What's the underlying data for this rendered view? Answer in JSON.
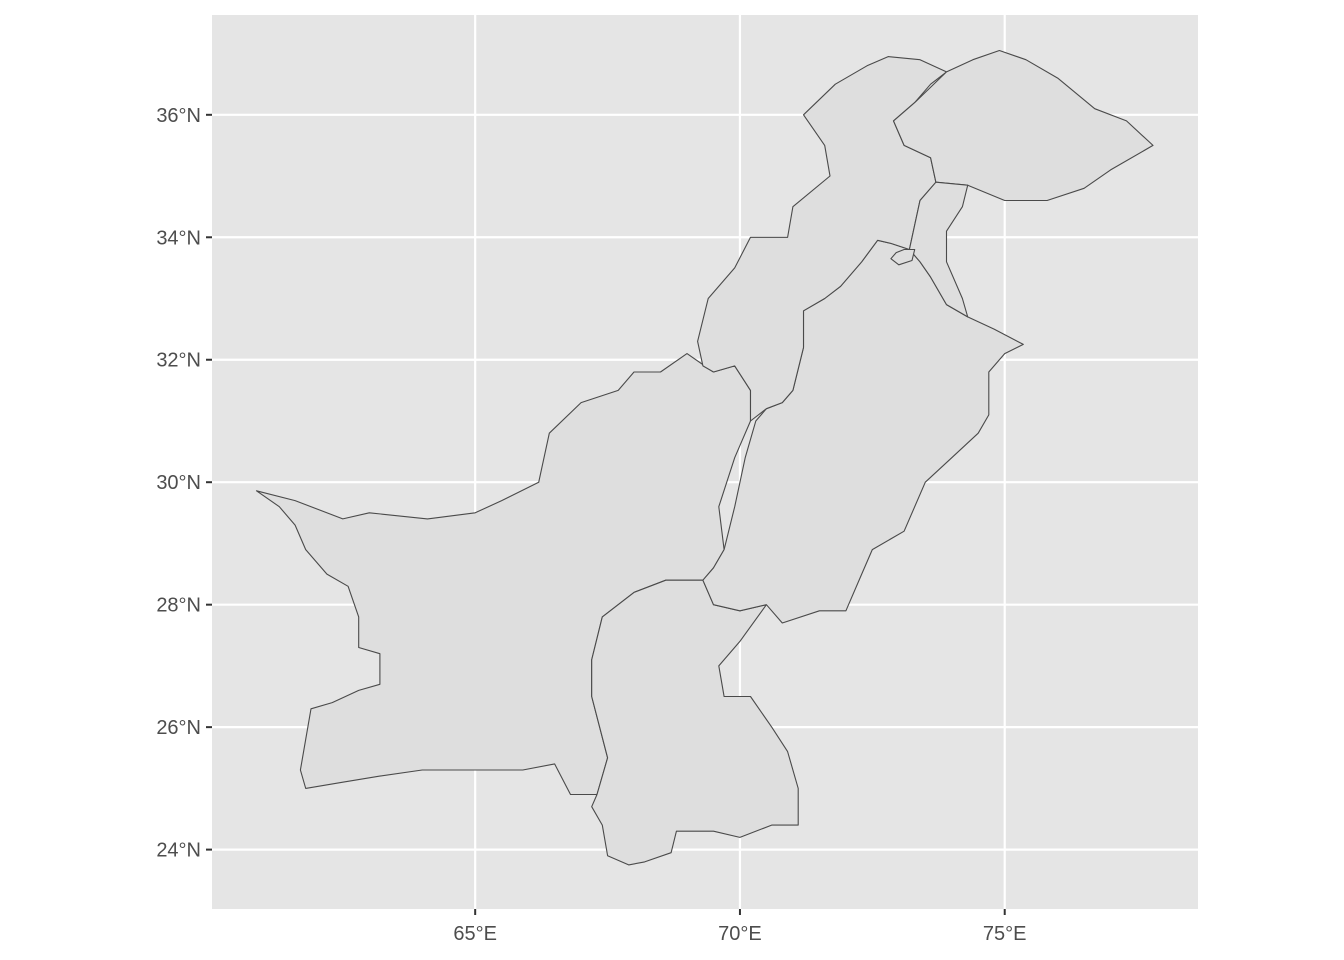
{
  "axes": {
    "x_ticks": [
      {
        "value": 65,
        "label": "65°E"
      },
      {
        "value": 70,
        "label": "70°E"
      },
      {
        "value": 75,
        "label": "75°E"
      }
    ],
    "y_ticks": [
      {
        "value": 24,
        "label": "24°N"
      },
      {
        "value": 26,
        "label": "26°N"
      },
      {
        "value": 28,
        "label": "28°N"
      },
      {
        "value": 30,
        "label": "30°N"
      },
      {
        "value": 32,
        "label": "32°N"
      },
      {
        "value": 34,
        "label": "34°N"
      },
      {
        "value": 36,
        "label": "36°N"
      }
    ],
    "x_range": [
      60.03,
      78.65
    ],
    "y_range": [
      23.03,
      37.63
    ]
  },
  "colors": {
    "panel_background": "#e5e5e5",
    "grid": "#ffffff",
    "region_fill": "#dedede",
    "region_border": "#4a4a4a",
    "tick_label": "#4d4d4d"
  },
  "regions": [
    {
      "id": "balochistan",
      "coords": [
        [
          60.87,
          29.86
        ],
        [
          61.3,
          29.6
        ],
        [
          61.6,
          29.3
        ],
        [
          61.8,
          28.9
        ],
        [
          62.2,
          28.5
        ],
        [
          62.6,
          28.3
        ],
        [
          62.8,
          27.8
        ],
        [
          62.8,
          27.3
        ],
        [
          63.2,
          27.2
        ],
        [
          63.2,
          26.7
        ],
        [
          62.8,
          26.6
        ],
        [
          62.3,
          26.4
        ],
        [
          61.9,
          26.3
        ],
        [
          61.8,
          25.8
        ],
        [
          61.7,
          25.3
        ],
        [
          61.8,
          25.0
        ],
        [
          62.5,
          25.1
        ],
        [
          63.2,
          25.2
        ],
        [
          64.0,
          25.3
        ],
        [
          65.0,
          25.3
        ],
        [
          65.9,
          25.3
        ],
        [
          66.5,
          25.4
        ],
        [
          66.8,
          24.9
        ],
        [
          67.3,
          24.9
        ],
        [
          67.5,
          25.5
        ],
        [
          67.2,
          26.5
        ],
        [
          67.2,
          27.1
        ],
        [
          67.4,
          27.8
        ],
        [
          68.0,
          28.2
        ],
        [
          68.6,
          28.4
        ],
        [
          69.3,
          28.4
        ],
        [
          69.5,
          28.6
        ],
        [
          69.7,
          28.9
        ],
        [
          69.6,
          29.6
        ],
        [
          69.9,
          30.4
        ],
        [
          70.2,
          31.0
        ],
        [
          70.2,
          31.5
        ],
        [
          69.9,
          31.9
        ],
        [
          69.5,
          31.8
        ],
        [
          69.0,
          32.1
        ],
        [
          68.5,
          31.8
        ],
        [
          68.0,
          31.8
        ],
        [
          67.7,
          31.5
        ],
        [
          67.0,
          31.3
        ],
        [
          66.4,
          30.8
        ],
        [
          66.2,
          30.0
        ],
        [
          65.5,
          29.7
        ],
        [
          65.0,
          29.5
        ],
        [
          64.1,
          29.4
        ],
        [
          63.0,
          29.5
        ],
        [
          62.5,
          29.4
        ],
        [
          61.6,
          29.7
        ]
      ]
    },
    {
      "id": "sindh",
      "coords": [
        [
          67.3,
          24.9
        ],
        [
          67.5,
          25.5
        ],
        [
          67.2,
          26.5
        ],
        [
          67.2,
          27.1
        ],
        [
          67.4,
          27.8
        ],
        [
          68.0,
          28.2
        ],
        [
          68.6,
          28.4
        ],
        [
          69.3,
          28.4
        ],
        [
          69.5,
          28.0
        ],
        [
          70.0,
          27.9
        ],
        [
          70.5,
          28.0
        ],
        [
          70.0,
          27.4
        ],
        [
          69.6,
          27.0
        ],
        [
          69.7,
          26.5
        ],
        [
          70.2,
          26.5
        ],
        [
          70.6,
          26.0
        ],
        [
          70.9,
          25.6
        ],
        [
          71.1,
          25.0
        ],
        [
          71.1,
          24.4
        ],
        [
          70.6,
          24.4
        ],
        [
          70.0,
          24.2
        ],
        [
          69.5,
          24.3
        ],
        [
          68.8,
          24.3
        ],
        [
          68.7,
          23.95
        ],
        [
          68.2,
          23.8
        ],
        [
          67.9,
          23.75
        ],
        [
          67.5,
          23.9
        ],
        [
          67.4,
          24.4
        ],
        [
          67.2,
          24.7
        ]
      ]
    },
    {
      "id": "punjab",
      "coords": [
        [
          69.5,
          28.6
        ],
        [
          69.7,
          28.9
        ],
        [
          69.9,
          29.6
        ],
        [
          70.1,
          30.4
        ],
        [
          70.3,
          31.0
        ],
        [
          70.5,
          31.2
        ],
        [
          70.8,
          31.3
        ],
        [
          71.0,
          31.5
        ],
        [
          71.2,
          32.2
        ],
        [
          71.2,
          32.8
        ],
        [
          71.6,
          33.0
        ],
        [
          71.9,
          33.2
        ],
        [
          72.3,
          33.6
        ],
        [
          72.6,
          33.95
        ],
        [
          72.85,
          33.9
        ],
        [
          73.2,
          33.8
        ],
        [
          73.4,
          33.6
        ],
        [
          73.6,
          33.35
        ],
        [
          73.9,
          32.9
        ],
        [
          74.3,
          32.7
        ],
        [
          74.8,
          32.5
        ],
        [
          75.35,
          32.25
        ],
        [
          75.0,
          32.1
        ],
        [
          74.7,
          31.8
        ],
        [
          74.7,
          31.1
        ],
        [
          74.5,
          30.8
        ],
        [
          74.0,
          30.4
        ],
        [
          73.5,
          30.0
        ],
        [
          73.1,
          29.2
        ],
        [
          72.5,
          28.9
        ],
        [
          72.3,
          28.5
        ],
        [
          72.0,
          27.9
        ],
        [
          71.5,
          27.9
        ],
        [
          70.8,
          27.7
        ],
        [
          70.5,
          28.0
        ],
        [
          70.0,
          27.9
        ],
        [
          69.5,
          28.0
        ],
        [
          69.3,
          28.4
        ]
      ]
    },
    {
      "id": "khyber_pakhtunkhwa",
      "coords": [
        [
          69.5,
          31.8
        ],
        [
          69.9,
          31.9
        ],
        [
          70.2,
          31.5
        ],
        [
          70.2,
          31.0
        ],
        [
          70.5,
          31.2
        ],
        [
          70.8,
          31.3
        ],
        [
          71.0,
          31.5
        ],
        [
          71.2,
          32.2
        ],
        [
          71.2,
          32.8
        ],
        [
          71.6,
          33.0
        ],
        [
          71.9,
          33.2
        ],
        [
          72.3,
          33.6
        ],
        [
          72.6,
          33.95
        ],
        [
          72.85,
          33.9
        ],
        [
          73.2,
          33.8
        ],
        [
          73.3,
          34.2
        ],
        [
          73.4,
          34.6
        ],
        [
          73.7,
          34.9
        ],
        [
          73.6,
          35.3
        ],
        [
          73.1,
          35.5
        ],
        [
          72.9,
          35.9
        ],
        [
          73.3,
          36.2
        ],
        [
          73.6,
          36.5
        ],
        [
          73.9,
          36.7
        ],
        [
          73.4,
          36.9
        ],
        [
          72.8,
          36.95
        ],
        [
          72.4,
          36.8
        ],
        [
          71.8,
          36.5
        ],
        [
          71.2,
          36.0
        ],
        [
          71.6,
          35.5
        ],
        [
          71.7,
          35.0
        ],
        [
          71.0,
          34.5
        ],
        [
          70.9,
          34.0
        ],
        [
          70.2,
          34.0
        ],
        [
          69.9,
          33.5
        ],
        [
          69.4,
          33.0
        ],
        [
          69.2,
          32.3
        ],
        [
          69.3,
          31.9
        ]
      ]
    },
    {
      "id": "gilgit_baltistan",
      "coords": [
        [
          73.9,
          36.7
        ],
        [
          73.3,
          36.2
        ],
        [
          72.9,
          35.9
        ],
        [
          73.1,
          35.5
        ],
        [
          73.6,
          35.3
        ],
        [
          73.7,
          34.9
        ],
        [
          74.3,
          34.85
        ],
        [
          75.0,
          34.6
        ],
        [
          75.8,
          34.6
        ],
        [
          76.5,
          34.8
        ],
        [
          77.0,
          35.1
        ],
        [
          77.8,
          35.5
        ],
        [
          77.3,
          35.9
        ],
        [
          76.7,
          36.1
        ],
        [
          76.0,
          36.6
        ],
        [
          75.4,
          36.9
        ],
        [
          74.9,
          37.05
        ],
        [
          74.4,
          36.9
        ]
      ]
    },
    {
      "id": "azad_kashmir",
      "coords": [
        [
          73.7,
          34.9
        ],
        [
          74.3,
          34.85
        ],
        [
          74.2,
          34.5
        ],
        [
          73.9,
          34.1
        ],
        [
          73.9,
          33.6
        ],
        [
          74.2,
          33.0
        ],
        [
          74.3,
          32.7
        ],
        [
          73.9,
          32.9
        ],
        [
          73.6,
          33.35
        ],
        [
          73.4,
          33.6
        ],
        [
          73.2,
          33.8
        ],
        [
          73.3,
          34.2
        ],
        [
          73.4,
          34.6
        ]
      ]
    },
    {
      "id": "islamabad",
      "coords": [
        [
          72.85,
          33.65
        ],
        [
          73.0,
          33.55
        ],
        [
          73.25,
          33.62
        ],
        [
          73.3,
          33.8
        ],
        [
          73.1,
          33.8
        ],
        [
          72.95,
          33.75
        ]
      ]
    }
  ]
}
